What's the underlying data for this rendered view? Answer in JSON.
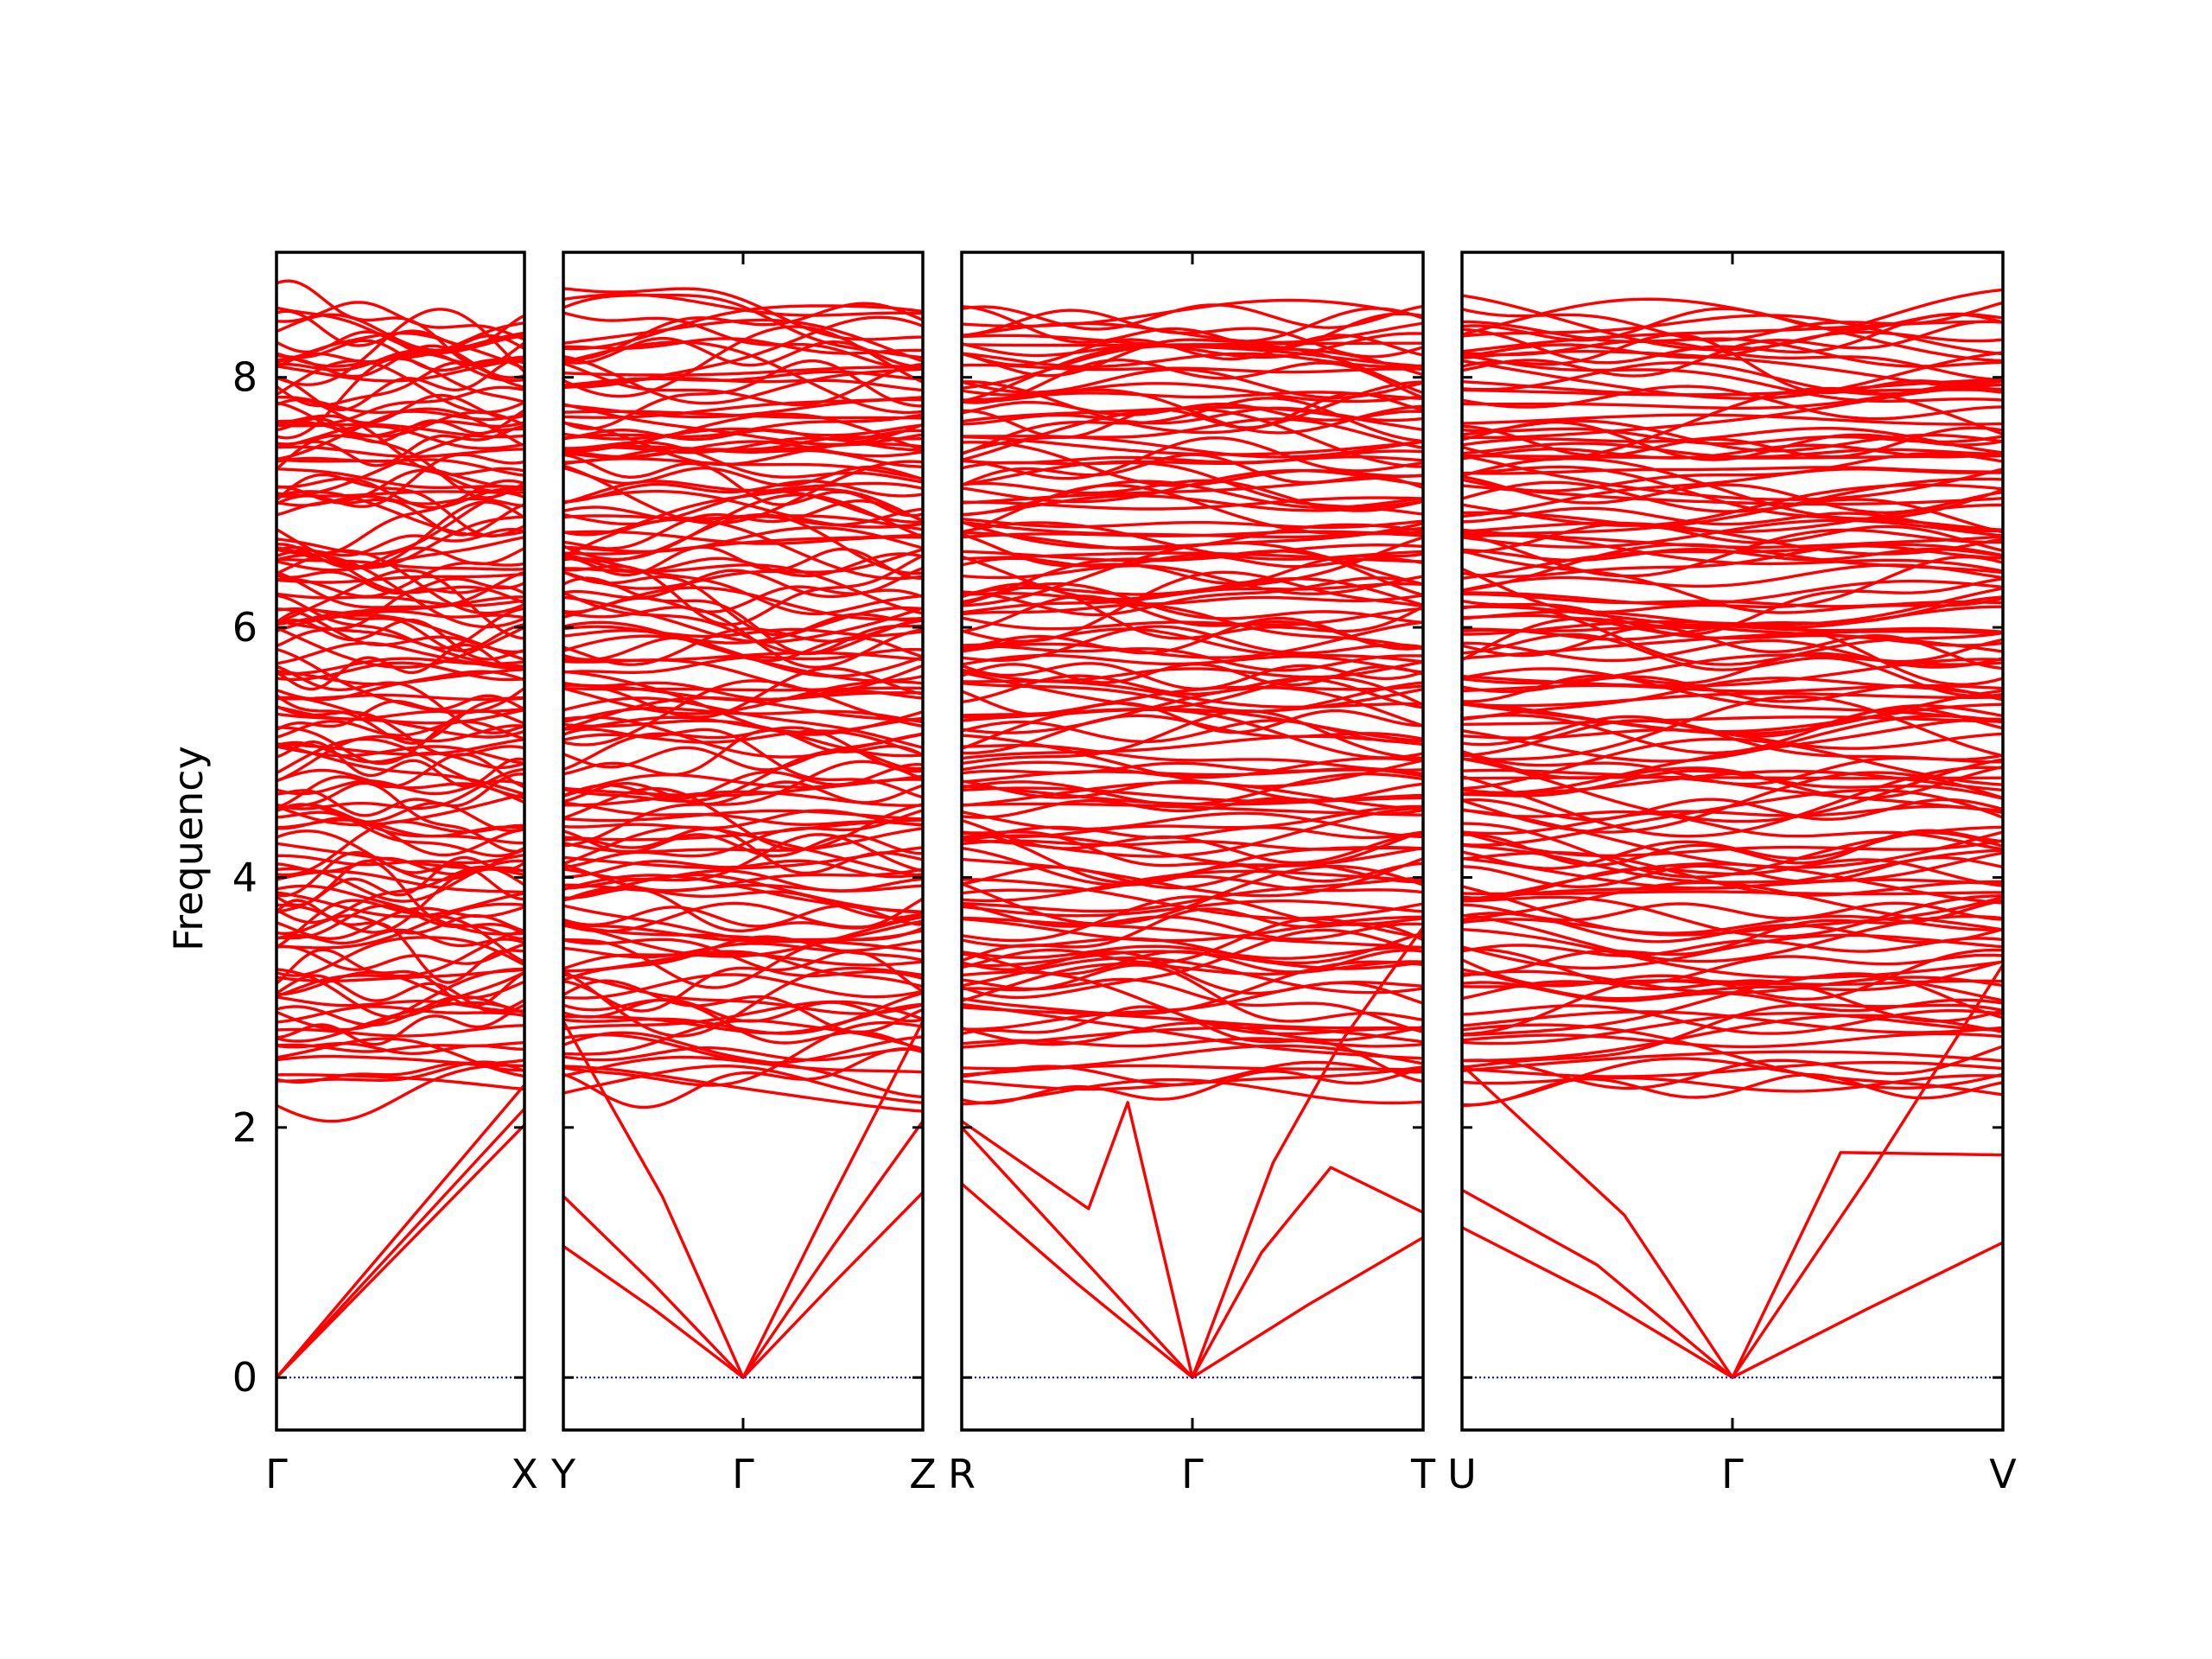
{
  "chart_data": {
    "type": "line",
    "title": "",
    "ylabel": "Frequency",
    "ylim": [
      -0.42,
      9.0
    ],
    "yticks": [
      0,
      2,
      4,
      6,
      8
    ],
    "grid": false,
    "legend": "none",
    "colors": {
      "bands": "#ff0000",
      "zero_line": "#0000cc",
      "frame": "#000000"
    },
    "panels": [
      {
        "name": "panel-gamma-x",
        "labels": [
          "Γ",
          "X"
        ],
        "k_points": [
          0,
          1
        ]
      },
      {
        "name": "panel-y-gamma-z",
        "labels": [
          "Y",
          "Γ",
          "Z"
        ],
        "k_points": [
          0,
          1,
          2
        ]
      },
      {
        "name": "panel-r-gamma-t",
        "labels": [
          "R",
          "Γ",
          "T"
        ],
        "k_points": [
          0,
          1,
          2
        ]
      },
      {
        "name": "panel-u-gamma-v",
        "labels": [
          "U",
          "Γ",
          "V"
        ],
        "k_points": [
          0,
          1,
          2
        ]
      }
    ],
    "acoustic_branches": [
      {
        "panel": 0,
        "x": [
          0,
          1
        ],
        "y": [
          0,
          2.34
        ]
      },
      {
        "panel": 0,
        "x": [
          0,
          1
        ],
        "y": [
          0,
          2.15
        ]
      },
      {
        "panel": 0,
        "x": [
          0,
          1
        ],
        "y": [
          0,
          2.02
        ]
      },
      {
        "panel": 1,
        "x": [
          0,
          0.5,
          1
        ],
        "y": [
          1.05,
          0.55,
          0
        ]
      },
      {
        "panel": 1,
        "x": [
          0,
          0.5,
          1
        ],
        "y": [
          1.45,
          0.75,
          0
        ]
      },
      {
        "panel": 1,
        "x": [
          0,
          0.55,
          1
        ],
        "y": [
          2.85,
          1.45,
          0
        ]
      },
      {
        "panel": 1,
        "x": [
          1,
          1.5,
          2
        ],
        "y": [
          0,
          0.75,
          1.48
        ]
      },
      {
        "panel": 1,
        "x": [
          1,
          1.5,
          2
        ],
        "y": [
          0,
          1.05,
          2.05
        ]
      },
      {
        "panel": 1,
        "x": [
          1,
          1.5,
          2
        ],
        "y": [
          0,
          1.45,
          2.85
        ]
      },
      {
        "panel": 2,
        "x": [
          0,
          0.5,
          1
        ],
        "y": [
          1.55,
          0.75,
          0
        ]
      },
      {
        "panel": 2,
        "x": [
          0,
          0.5,
          1
        ],
        "y": [
          2.0,
          1.0,
          0
        ]
      },
      {
        "panel": 2,
        "x": [
          0,
          0.55,
          0.72,
          1
        ],
        "y": [
          2.05,
          1.35,
          2.2,
          0
        ]
      },
      {
        "panel": 2,
        "x": [
          1,
          1.5,
          2
        ],
        "y": [
          0,
          0.58,
          1.12
        ]
      },
      {
        "panel": 2,
        "x": [
          1,
          1.3,
          1.6,
          2
        ],
        "y": [
          0,
          1.0,
          1.68,
          1.32
        ]
      },
      {
        "panel": 2,
        "x": [
          1,
          1.35,
          1.65,
          2
        ],
        "y": [
          0,
          1.72,
          2.7,
          3.6
        ]
      },
      {
        "panel": 3,
        "x": [
          0,
          0.5,
          1
        ],
        "y": [
          1.2,
          0.65,
          0
        ]
      },
      {
        "panel": 3,
        "x": [
          0,
          0.5,
          1
        ],
        "y": [
          1.5,
          0.9,
          0
        ]
      },
      {
        "panel": 3,
        "x": [
          0,
          0.6,
          1
        ],
        "y": [
          2.5,
          1.3,
          0
        ]
      },
      {
        "panel": 3,
        "x": [
          1,
          1.5,
          2
        ],
        "y": [
          0,
          0.55,
          1.08
        ]
      },
      {
        "panel": 3,
        "x": [
          1,
          1.4,
          2
        ],
        "y": [
          0,
          1.8,
          1.78
        ]
      },
      {
        "panel": 3,
        "x": [
          1,
          1.5,
          2
        ],
        "y": [
          0,
          1.6,
          3.3
        ]
      }
    ],
    "optical_band_region": {
      "ymin": 1.5,
      "ymax": 8.55,
      "approx_band_count": 150
    },
    "zero_line_value": 0
  }
}
